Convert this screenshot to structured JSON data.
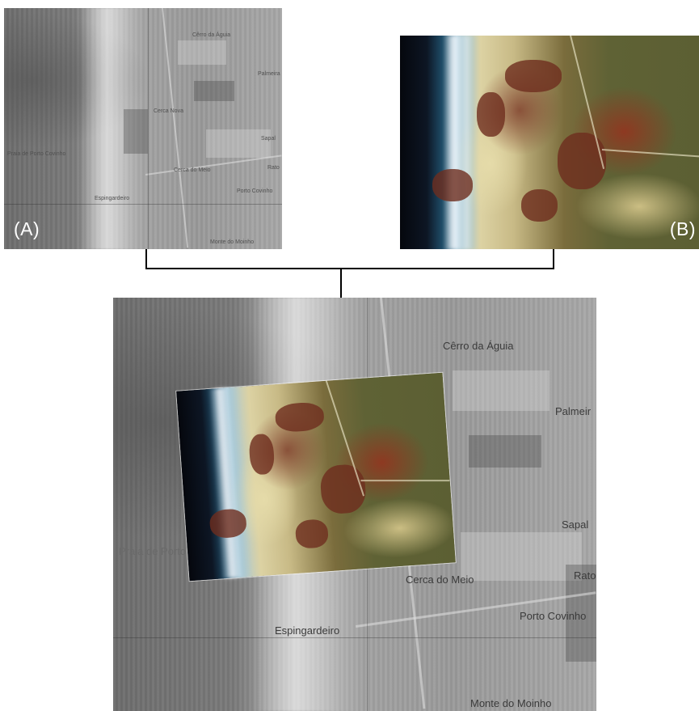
{
  "panel_a": {
    "tag": "(A)",
    "labels": {
      "cerro": "Cêrro da Águia",
      "palmeira": "Palmeira",
      "cerca_nova": "Cerca Nova",
      "sapal": "Sapal",
      "praia": "Praia de Porto Covinho",
      "rato": "Rato",
      "cerca_meio": "Cerca do Meio",
      "espingardeiro": "Espingardeiro",
      "porto_covinho": "Porto Covinho",
      "monte": "Monte do Moinho"
    }
  },
  "panel_b": {
    "tag": "(B)"
  },
  "composite": {
    "labels": {
      "cerro": "Cêrro da Águia",
      "palmeira": "Palmeir",
      "sapal": "Sapal",
      "praia": "Praia de Porto",
      "rato": "Rato",
      "cerca_meio": "Cerca do Meio",
      "porto_covinho": "Porto Covinho",
      "espingardeiro": "Espingardeiro",
      "monte": "Monte do Moinho"
    }
  },
  "colors": {
    "connector": "#000000",
    "label_on_image": "#ffffff",
    "map_text": "#3b3b3b"
  }
}
